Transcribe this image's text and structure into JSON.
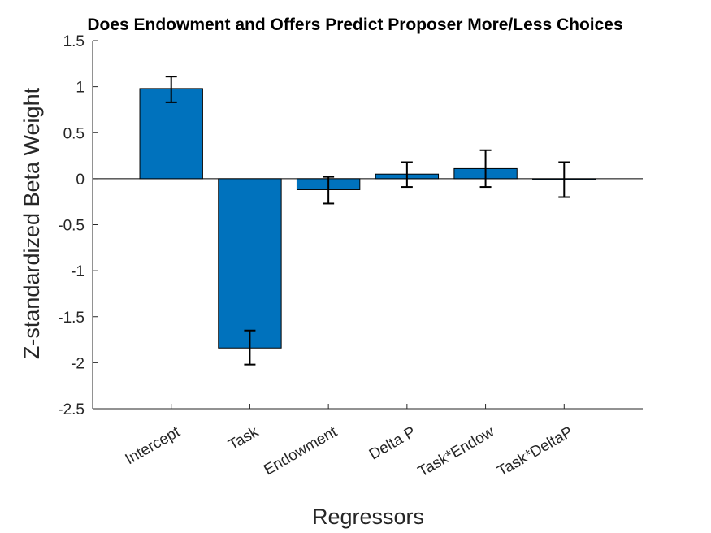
{
  "chart_data": {
    "type": "bar",
    "title": "Does Endowment and Offers Predict Proposer More/Less Choices",
    "xlabel": "Regressors",
    "ylabel": "Z-standardized Beta Weight",
    "categories": [
      "Intercept",
      "Task",
      "Endowment",
      "Delta P",
      "Task*Endow",
      "Task*DeltaP"
    ],
    "values": [
      0.98,
      -1.84,
      -0.12,
      0.05,
      0.11,
      -0.01
    ],
    "error_low": [
      0.83,
      -2.02,
      -0.27,
      -0.09,
      -0.09,
      -0.2
    ],
    "error_high": [
      1.11,
      -1.65,
      0.02,
      0.18,
      0.31,
      0.18
    ],
    "ylim": [
      -2.5,
      1.5
    ],
    "yticks": [
      1.5,
      1,
      0.5,
      0,
      -0.5,
      -1,
      -1.5,
      -2,
      -2.5
    ],
    "ytick_labels": [
      "1.5",
      "1",
      "0.5",
      "0",
      "-0.5",
      "-1",
      "-1.5",
      "-2",
      "-2.5"
    ],
    "xlim": [
      0.0,
      7.0
    ],
    "bar_color": "#0072BD",
    "grid": false,
    "legend": "none"
  }
}
